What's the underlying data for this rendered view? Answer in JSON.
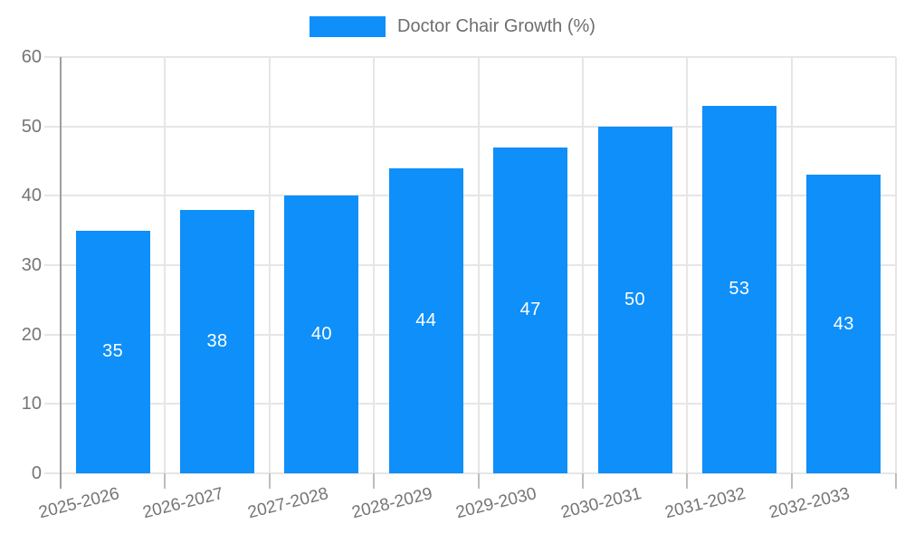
{
  "chart_data": {
    "type": "bar",
    "title": "",
    "legend": {
      "label": "Doctor Chair Growth (%)",
      "position": "top"
    },
    "categories": [
      "2025-2026",
      "2026-2027",
      "2027-2028",
      "2028-2029",
      "2029-2030",
      "2030-2031",
      "2031-2032",
      "2032-2033"
    ],
    "values": [
      35,
      38,
      40,
      44,
      47,
      50,
      53,
      43
    ],
    "xlabel": "",
    "ylabel": "",
    "ylim": [
      0,
      60
    ],
    "ytick_step": 10,
    "yticks": [
      0,
      10,
      20,
      30,
      40,
      50,
      60
    ],
    "grid": true,
    "bar_labels_shown": true,
    "colors": {
      "bar": "#0e8ff9",
      "bar_label": "#ffffff",
      "axis_text": "#757575",
      "gridline": "#e6e6e6",
      "axis_line": "#9e9e9e",
      "tick_line": "#bdbdbd",
      "background": "#ffffff"
    }
  }
}
